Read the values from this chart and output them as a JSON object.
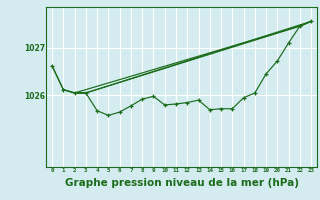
{
  "bg_color": "#d4ecf0",
  "grid_color": "#b0d8e0",
  "line_color": "#1a6b1a",
  "marker_color": "#1a6b1a",
  "xlabel": "Graphe pression niveau de la mer (hPa)",
  "xlabel_fontsize": 7.5,
  "ylabel_ticks": [
    1026,
    1027
  ],
  "xlim": [
    -0.5,
    23.5
  ],
  "ylim": [
    1024.5,
    1027.85
  ],
  "x_ticks": [
    0,
    1,
    2,
    3,
    4,
    5,
    6,
    7,
    8,
    9,
    10,
    11,
    12,
    13,
    14,
    15,
    16,
    17,
    18,
    19,
    20,
    21,
    22,
    23
  ],
  "series1": {
    "x": [
      0,
      1,
      2,
      3,
      4,
      5,
      6,
      7,
      8,
      9,
      10,
      11,
      12,
      13,
      14,
      15,
      16,
      17,
      18,
      19,
      20,
      21,
      22,
      23
    ],
    "y": [
      1026.62,
      1026.12,
      1026.05,
      1026.05,
      1025.68,
      1025.58,
      1025.65,
      1025.78,
      1025.92,
      1025.98,
      1025.8,
      1025.82,
      1025.85,
      1025.9,
      1025.7,
      1025.72,
      1025.72,
      1025.95,
      1026.05,
      1026.45,
      1026.72,
      1027.1,
      1027.45,
      1027.55
    ]
  },
  "series2": {
    "x": [
      0,
      1,
      2,
      22,
      23
    ],
    "y": [
      1026.62,
      1026.12,
      1026.05,
      1027.45,
      1027.55
    ]
  },
  "series3": {
    "x": [
      1,
      2,
      3,
      22,
      23
    ],
    "y": [
      1026.12,
      1026.05,
      1026.05,
      1027.45,
      1027.55
    ]
  },
  "series4": {
    "x": [
      2,
      3,
      23
    ],
    "y": [
      1026.05,
      1026.05,
      1027.55
    ]
  }
}
